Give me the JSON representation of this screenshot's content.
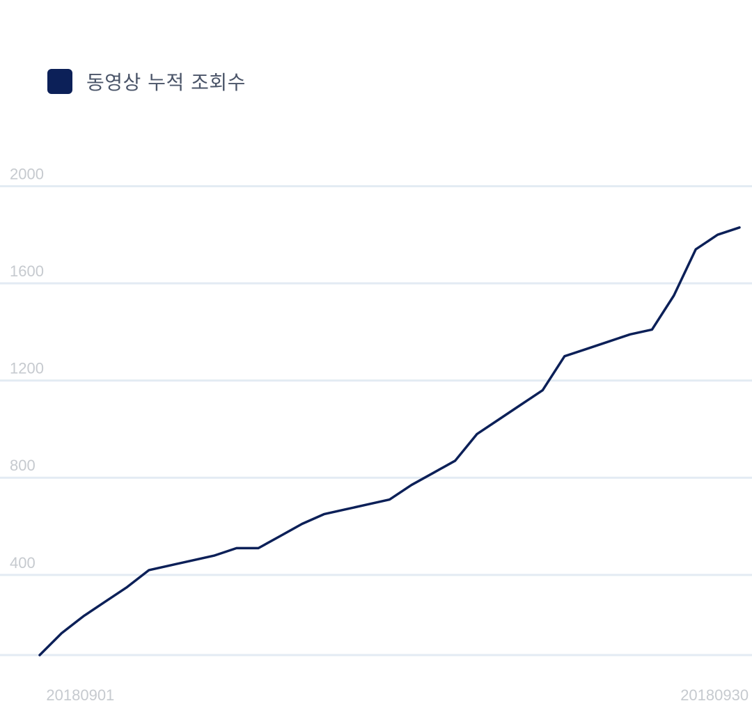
{
  "chart_data": {
    "type": "line",
    "legend": {
      "label": "동영상 누적 조회수",
      "color": "#0c2058",
      "placement": "top-left"
    },
    "y_ticks": [
      "400",
      "800",
      "1200",
      "1600",
      "2000"
    ],
    "ylim": [
      70,
      2050
    ],
    "x_tick_labels": [
      "20180901",
      "20180930"
    ],
    "grid": true,
    "grid_color": "#e3ebf3",
    "series": [
      {
        "name": "동영상 누적 조회수",
        "color": "#0c2058",
        "x": [
          "20180831",
          "20180901",
          "20180902",
          "20180903",
          "20180904",
          "20180905",
          "20180906",
          "20180907",
          "20180908",
          "20180909",
          "20180910",
          "20180911",
          "20180912",
          "20180913",
          "20180914",
          "20180915",
          "20180916",
          "20180917",
          "20180918",
          "20180919",
          "20180920",
          "20180921",
          "20180922",
          "20180923",
          "20180924",
          "20180925",
          "20180926",
          "20180927",
          "20180928",
          "20180929",
          "20180930",
          "20181001",
          "20181002"
        ],
        "values": [
          70,
          160,
          230,
          290,
          350,
          420,
          440,
          460,
          480,
          510,
          510,
          560,
          610,
          650,
          670,
          690,
          710,
          770,
          820,
          870,
          980,
          1040,
          1100,
          1160,
          1300,
          1330,
          1360,
          1390,
          1410,
          1550,
          1740,
          1800,
          1830
        ]
      }
    ]
  }
}
